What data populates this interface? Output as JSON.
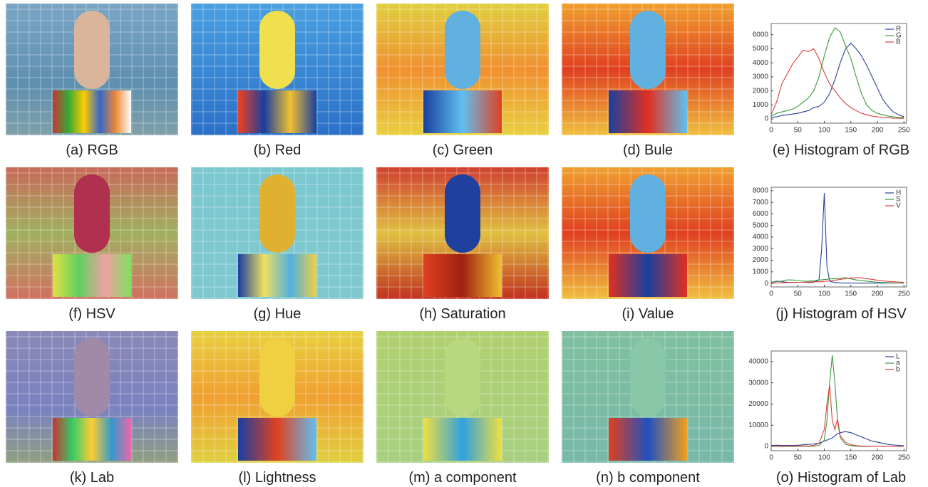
{
  "captions": [
    "(a) RGB",
    "(b) Red",
    "(c) Green",
    "(d) Bule",
    "(e) Histogram of RGB",
    "(f) HSV",
    "(g) Hue",
    "(h) Saturation",
    "(i) Value",
    "(j) Histogram of HSV",
    "(k) Lab",
    "(l) Lightness",
    "(m) a component",
    "(n) b component",
    "(o) Histogram of Lab"
  ],
  "chart_data": [
    {
      "type": "line",
      "xlim": [
        0,
        255
      ],
      "xticks": [
        0,
        50,
        100,
        150,
        200,
        250
      ],
      "ylim": [
        -300,
        6800
      ],
      "yticks": [
        0,
        1000,
        2000,
        3000,
        4000,
        5000,
        6000
      ],
      "x": [
        0,
        10,
        20,
        30,
        40,
        50,
        60,
        70,
        80,
        90,
        100,
        110,
        120,
        130,
        140,
        150,
        160,
        170,
        180,
        190,
        200,
        210,
        220,
        230,
        240,
        250
      ],
      "series": [
        {
          "name": "R",
          "color": "#2a3f9a",
          "values": [
            100,
            150,
            250,
            300,
            350,
            400,
            500,
            600,
            800,
            900,
            1200,
            1800,
            2800,
            4000,
            5000,
            5400,
            5000,
            4500,
            3800,
            3000,
            2200,
            1400,
            900,
            500,
            300,
            150
          ]
        },
        {
          "name": "G",
          "color": "#3a9a3a",
          "values": [
            200,
            400,
            500,
            600,
            700,
            900,
            1200,
            1500,
            2000,
            3000,
            4500,
            5800,
            6500,
            6200,
            5200,
            4300,
            3000,
            1800,
            1000,
            600,
            400,
            300,
            200,
            150,
            100,
            100
          ]
        },
        {
          "name": "B",
          "color": "#e03c3c",
          "values": [
            300,
            1200,
            2500,
            3200,
            3900,
            4400,
            4900,
            4800,
            5000,
            4300,
            3300,
            2500,
            2000,
            1500,
            1100,
            800,
            600,
            400,
            300,
            200,
            150,
            100,
            80,
            60,
            50,
            40
          ]
        }
      ]
    },
    {
      "type": "line",
      "xlim": [
        0,
        255
      ],
      "xticks": [
        0,
        50,
        100,
        150,
        200,
        250
      ],
      "ylim": [
        -300,
        8300
      ],
      "yticks": [
        0,
        1000,
        2000,
        3000,
        4000,
        5000,
        6000,
        7000,
        8000
      ],
      "x": [
        0,
        10,
        20,
        30,
        40,
        50,
        60,
        70,
        80,
        90,
        95,
        100,
        105,
        110,
        120,
        130,
        140,
        150,
        160,
        170,
        180,
        190,
        200,
        210,
        220,
        230,
        240,
        250
      ],
      "series": [
        {
          "name": "H",
          "color": "#2a3f9a",
          "values": [
            100,
            200,
            150,
            100,
            80,
            100,
            100,
            80,
            100,
            300,
            3000,
            7800,
            1500,
            200,
            80,
            50,
            30,
            30,
            30,
            30,
            30,
            30,
            30,
            30,
            30,
            30,
            30,
            30
          ]
        },
        {
          "name": "S",
          "color": "#3a9a3a",
          "values": [
            100,
            150,
            200,
            300,
            300,
            250,
            200,
            200,
            250,
            300,
            300,
            350,
            350,
            400,
            400,
            450,
            500,
            400,
            300,
            250,
            200,
            150,
            100,
            80,
            60,
            50,
            40,
            30
          ]
        },
        {
          "name": "V",
          "color": "#e03c3c",
          "values": [
            30,
            40,
            50,
            60,
            80,
            100,
            100,
            120,
            150,
            150,
            150,
            180,
            200,
            220,
            280,
            350,
            420,
            480,
            500,
            480,
            420,
            350,
            280,
            220,
            180,
            150,
            120,
            100
          ]
        }
      ]
    },
    {
      "type": "line",
      "xlim": [
        0,
        255
      ],
      "xticks": [
        0,
        50,
        100,
        150,
        200,
        250
      ],
      "ylim": [
        -2000,
        45000
      ],
      "yticks": [
        0,
        10000,
        20000,
        30000,
        40000
      ],
      "x": [
        0,
        10,
        20,
        30,
        40,
        50,
        60,
        70,
        80,
        90,
        100,
        105,
        110,
        115,
        120,
        125,
        130,
        140,
        150,
        160,
        170,
        180,
        190,
        200,
        210,
        220,
        230,
        240,
        250
      ],
      "series": [
        {
          "name": "L",
          "color": "#2a3f9a",
          "values": [
            500,
            600,
            500,
            500,
            500,
            600,
            800,
            1000,
            1200,
            1500,
            2500,
            3000,
            3500,
            4000,
            5000,
            6000,
            6500,
            7000,
            6500,
            5500,
            4500,
            3500,
            2500,
            2000,
            1500,
            1000,
            700,
            500,
            300
          ]
        },
        {
          "name": "a",
          "color": "#3a9a3a",
          "values": [
            0,
            0,
            0,
            0,
            0,
            0,
            0,
            0,
            100,
            500,
            3000,
            12000,
            30000,
            43000,
            30000,
            12000,
            4000,
            1000,
            300,
            100,
            0,
            0,
            0,
            0,
            0,
            0,
            0,
            0,
            0
          ]
        },
        {
          "name": "b",
          "color": "#e03c3c",
          "values": [
            200,
            200,
            200,
            200,
            200,
            200,
            200,
            200,
            500,
            1500,
            8000,
            20000,
            29000,
            12000,
            8000,
            13000,
            5000,
            2000,
            800,
            400,
            200,
            100,
            50,
            50,
            50,
            50,
            50,
            50,
            50
          ]
        }
      ]
    }
  ]
}
